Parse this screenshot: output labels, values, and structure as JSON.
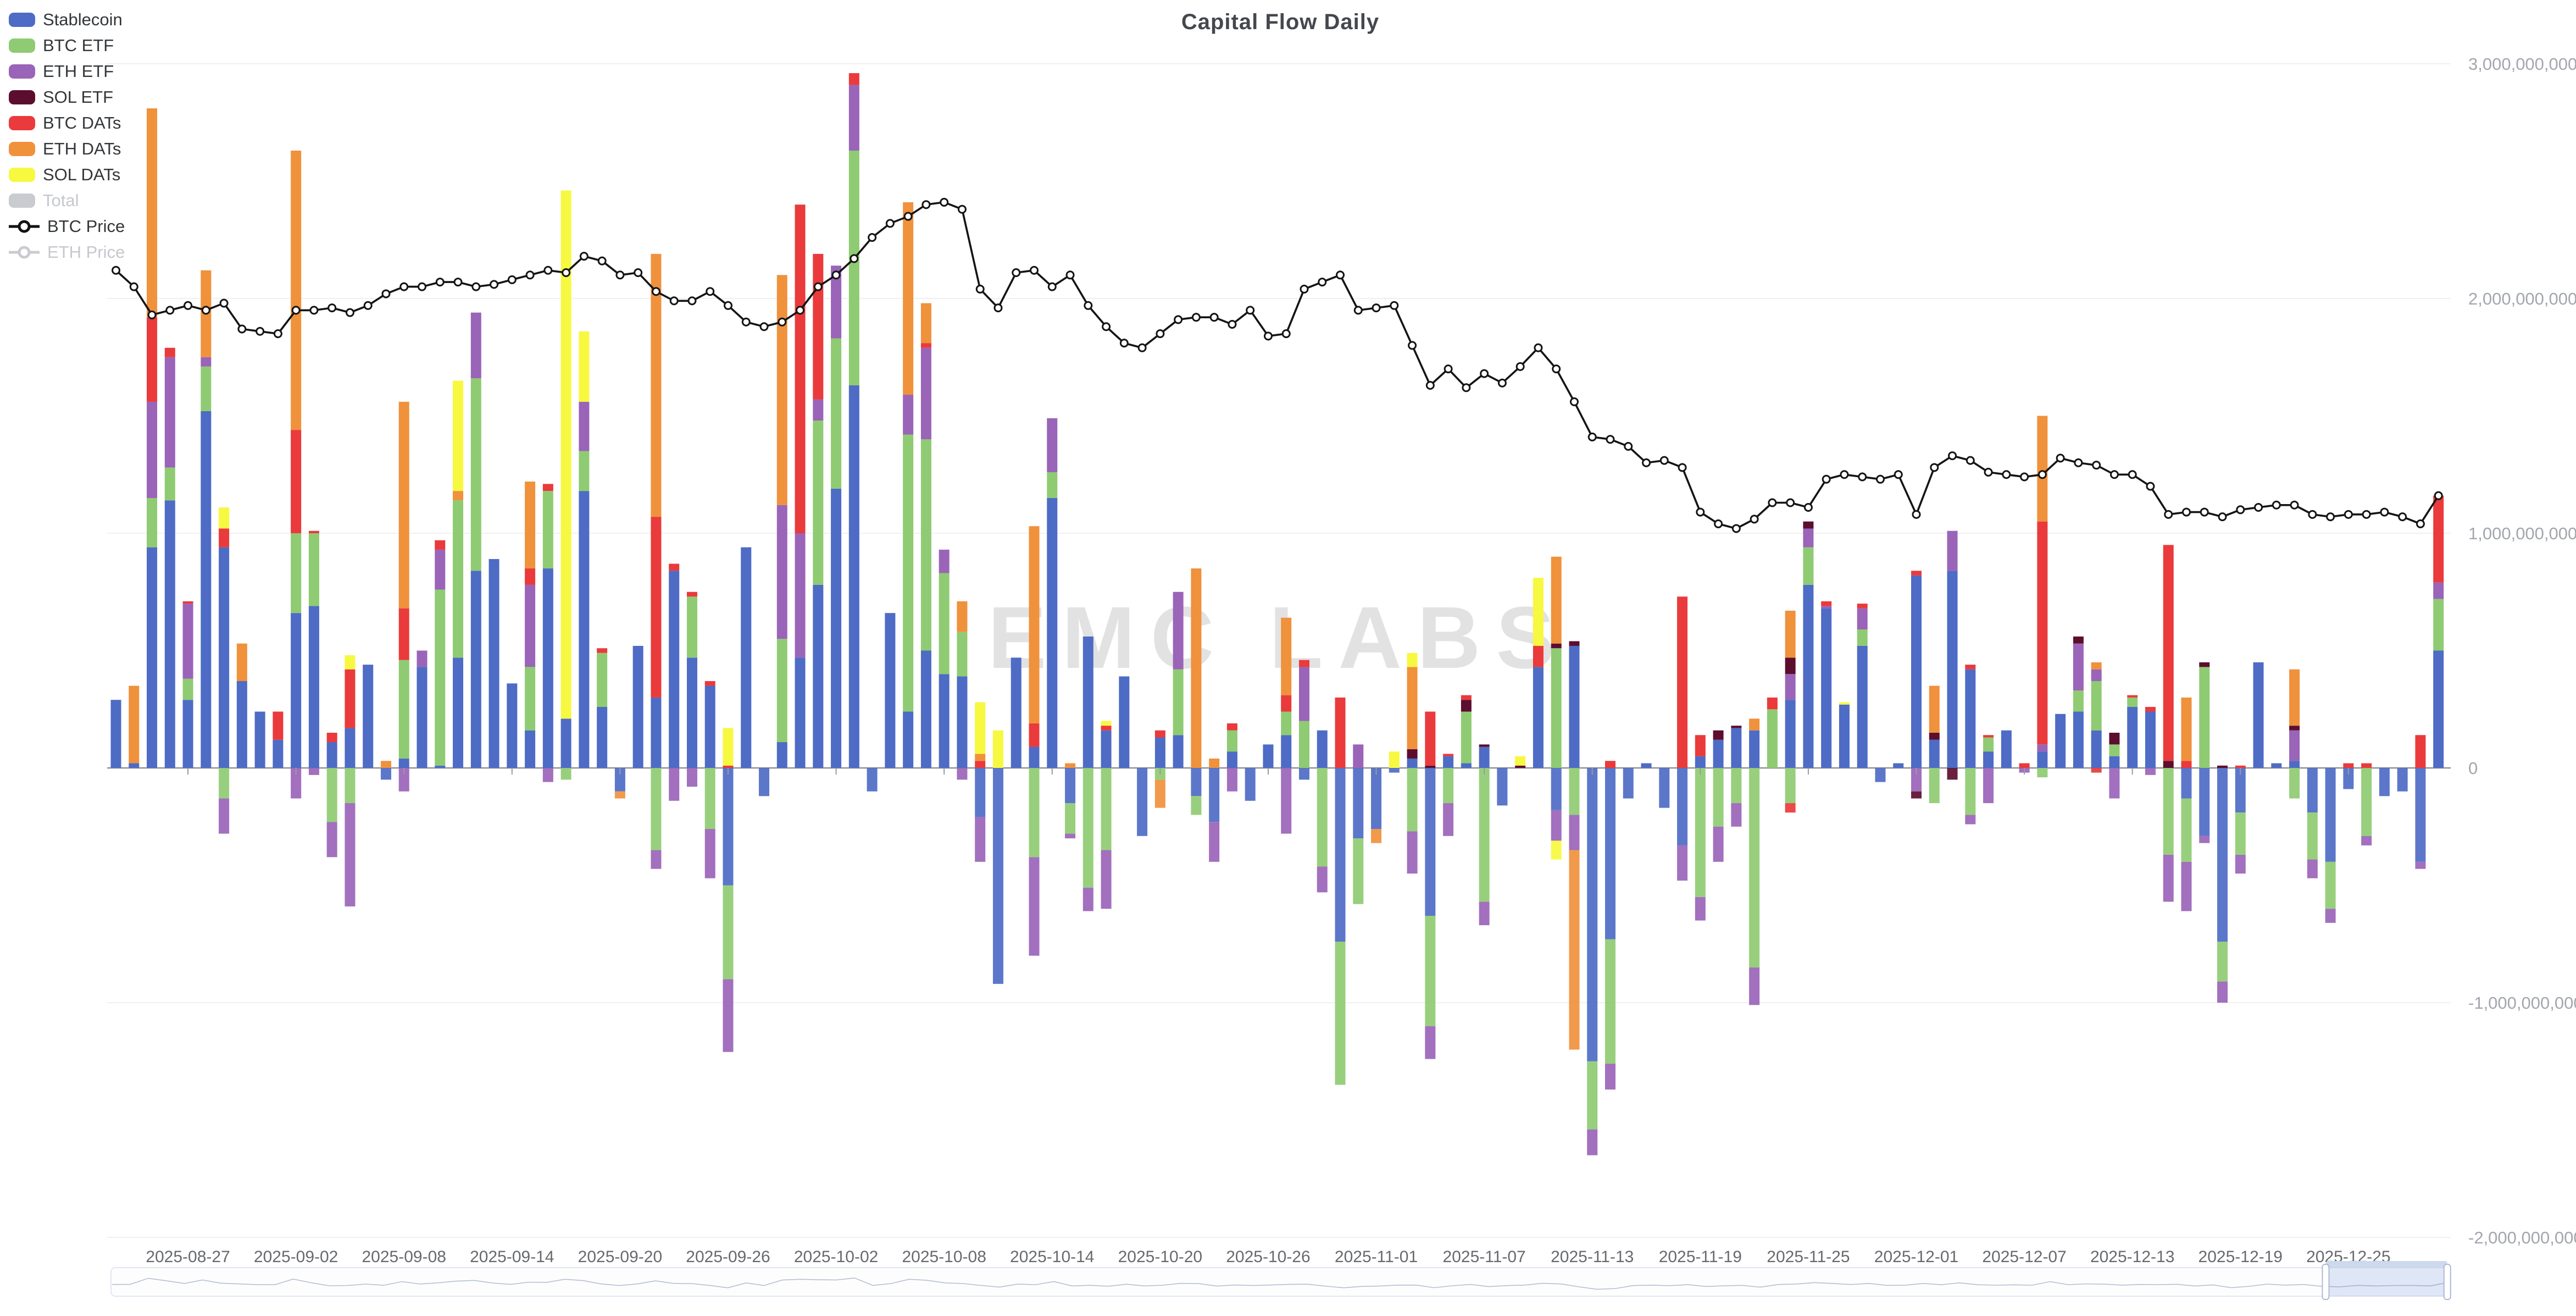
{
  "title": "Capital Flow Daily",
  "watermark": "EMC LABS",
  "legend": {
    "items": [
      {
        "label": "Stablecoin",
        "type": "bar",
        "color": "#4e6bc5",
        "enabled": true
      },
      {
        "label": "BTC ETF",
        "type": "bar",
        "color": "#8fcb72",
        "enabled": true
      },
      {
        "label": "ETH ETF",
        "type": "bar",
        "color": "#9a64b8",
        "enabled": true
      },
      {
        "label": "SOL ETF",
        "type": "bar",
        "color": "#5c0e2f",
        "enabled": true
      },
      {
        "label": "BTC DATs",
        "type": "bar",
        "color": "#ea3a3b",
        "enabled": true
      },
      {
        "label": "ETH DATs",
        "type": "bar",
        "color": "#f0913c",
        "enabled": true
      },
      {
        "label": "SOL DATs",
        "type": "bar",
        "color": "#f7f840",
        "enabled": true
      },
      {
        "label": "Total",
        "type": "bar",
        "color": "#c8c8c8",
        "enabled": false
      },
      {
        "label": "BTC Price",
        "type": "line",
        "color": "#111111",
        "enabled": true
      },
      {
        "label": "ETH Price",
        "type": "line",
        "color": "#c8c8c8",
        "enabled": false
      }
    ]
  },
  "y_axis": {
    "position": "right",
    "tick_labels": [
      "3,000,000,000",
      "2,000,000,000",
      "1,000,000,000",
      "0",
      "-1,000,000,000",
      "-2,000,000,000"
    ],
    "tick_values_millions": [
      3000,
      2000,
      1000,
      0,
      -1000,
      -2000
    ],
    "grid": true
  },
  "x_axis": {
    "tick_labels": [
      "2025-08-27",
      "2025-09-02",
      "2025-09-08",
      "2025-09-14",
      "2025-09-20",
      "2025-09-26",
      "2025-10-02",
      "2025-10-08",
      "2025-10-14",
      "2025-10-20",
      "2025-10-26",
      "2025-11-01",
      "2025-11-07",
      "2025-11-13",
      "2025-11-19",
      "2025-11-25",
      "2025-12-01",
      "2025-12-07",
      "2025-12-13",
      "2025-12-19",
      "2025-12-25"
    ],
    "tick_day_indices": [
      4,
      10,
      16,
      22,
      28,
      34,
      40,
      46,
      52,
      58,
      64,
      70,
      76,
      82,
      88,
      94,
      100,
      106,
      112,
      118,
      124
    ]
  },
  "data_zoom": {
    "selection_start_pct": 94.7,
    "selection_end_pct": 99.9
  },
  "chart_data": {
    "type": "bar",
    "subtype": "stacked bars with overlaid line",
    "unit": "USD millions (values approximate, read from gridlines)",
    "ylim_millions": [
      -2000,
      3000
    ],
    "legend_position": "top-left vertical",
    "series_order": [
      "stablecoin",
      "btc_etf",
      "eth_etf",
      "sol_etf",
      "btc_dats",
      "eth_dats",
      "sol_dats"
    ],
    "series_colors": {
      "stablecoin": "#4e6bc5",
      "btc_etf": "#8fcb72",
      "eth_etf": "#9a64b8",
      "sol_etf": "#5c0e2f",
      "btc_dats": "#ea3a3b",
      "eth_dats": "#f0913c",
      "sol_dats": "#f7f840",
      "btc_price": "#111111"
    },
    "days": [
      {
        "date": "2025-08-23",
        "s": 290,
        "p": 2120
      },
      {
        "date": "2025-08-24",
        "s": 20,
        "ed": 330,
        "p": 2050
      },
      {
        "date": "2025-08-25",
        "s": 940,
        "be": 210,
        "ee": 410,
        "bd": 360,
        "ed": 890,
        "p": 1930
      },
      {
        "date": "2025-08-26",
        "s": 1140,
        "be": 140,
        "ee": 470,
        "bd": 40,
        "p": 1950
      },
      {
        "date": "2025-08-27",
        "s": 290,
        "be": 90,
        "ee": 320,
        "bd": 10,
        "p": 1970
      },
      {
        "date": "2025-08-28",
        "s": 1520,
        "be": 190,
        "ee": 40,
        "ed": 370,
        "p": 1950
      },
      {
        "date": "2025-08-29",
        "s": 940,
        "bd": 80,
        "sd": 90,
        "be": -130,
        "ee": -150,
        "p": 1980
      },
      {
        "date": "2025-08-30",
        "s": 370,
        "ed": 160,
        "p": 1870
      },
      {
        "date": "2025-08-31",
        "s": 240,
        "p": 1860
      },
      {
        "date": "2025-09-01",
        "s": 120,
        "bd": 120,
        "p": 1850
      },
      {
        "date": "2025-09-02",
        "s": 660,
        "be": 340,
        "bd": 440,
        "ed": 1190,
        "ee": -130,
        "p": 1950
      },
      {
        "date": "2025-09-03",
        "s": 690,
        "be": 310,
        "bd": 10,
        "ee": -30,
        "p": 1950
      },
      {
        "date": "2025-09-04",
        "s": 110,
        "bd": 40,
        "be": -230,
        "ee": -150,
        "p": 1960
      },
      {
        "date": "2025-09-05",
        "s": 170,
        "bd": 250,
        "sd": 60,
        "be": -150,
        "ee": -440,
        "p": 1940
      },
      {
        "date": "2025-09-06",
        "s": 440,
        "p": 1970
      },
      {
        "date": "2025-09-07",
        "s": -50,
        "ed": 30,
        "p": 2020
      },
      {
        "date": "2025-09-08",
        "s": 40,
        "be": 420,
        "bd": 220,
        "ed": 880,
        "ee": -100,
        "p": 2050
      },
      {
        "date": "2025-09-09",
        "s": 430,
        "ee": 70,
        "p": 2050
      },
      {
        "date": "2025-09-10",
        "s": 10,
        "be": 750,
        "ee": 170,
        "bd": 40,
        "p": 2070
      },
      {
        "date": "2025-09-11",
        "s": 470,
        "be": 670,
        "ed": 40,
        "sd": 470,
        "p": 2070
      },
      {
        "date": "2025-09-12",
        "s": 840,
        "be": 820,
        "ee": 280,
        "p": 2050
      },
      {
        "date": "2025-09-13",
        "s": 890,
        "p": 2060
      },
      {
        "date": "2025-09-14",
        "s": 360,
        "p": 2080
      },
      {
        "date": "2025-09-15",
        "s": 160,
        "be": 270,
        "ee": 350,
        "bd": 70,
        "ed": 370,
        "p": 2100
      },
      {
        "date": "2025-09-16",
        "s": 850,
        "be": 330,
        "bd": 30,
        "ee": -60,
        "p": 2120
      },
      {
        "date": "2025-09-17",
        "s": 210,
        "sd": 2250,
        "be": -50,
        "p": 2110
      },
      {
        "date": "2025-09-18",
        "s": 1180,
        "be": 170,
        "ee": 210,
        "sd": 300,
        "p": 2180
      },
      {
        "date": "2025-09-19",
        "s": 260,
        "be": 230,
        "bd": 20,
        "p": 2160
      },
      {
        "date": "2025-09-20",
        "s": -100,
        "ed": -30,
        "p": 2100
      },
      {
        "date": "2025-09-21",
        "s": 520,
        "p": 2110
      },
      {
        "date": "2025-09-22",
        "s": 300,
        "bd": 770,
        "ed": 1120,
        "be": -350,
        "ee": -80,
        "p": 2030
      },
      {
        "date": "2025-09-23",
        "s": 840,
        "bd": 30,
        "ee": -140,
        "p": 1990
      },
      {
        "date": "2025-09-24",
        "s": 470,
        "be": 260,
        "bd": 20,
        "ee": -80,
        "p": 1990
      },
      {
        "date": "2025-09-25",
        "s": 350,
        "bd": 20,
        "be": -260,
        "ee": -210,
        "p": 2030
      },
      {
        "date": "2025-09-26",
        "bd": 10,
        "sd": 160,
        "s": -500,
        "be": -400,
        "ee": -310,
        "p": 1970
      },
      {
        "date": "2025-09-27",
        "s": 940,
        "p": 1900
      },
      {
        "date": "2025-09-28",
        "s": -120,
        "p": 1880
      },
      {
        "date": "2025-09-29",
        "s": 110,
        "be": 440,
        "ee": 570,
        "ed": 980,
        "p": 1900
      },
      {
        "date": "2025-09-30",
        "s": 470,
        "ee": 530,
        "bd": 1400,
        "p": 1950
      },
      {
        "date": "2025-10-01",
        "s": 780,
        "be": 700,
        "ee": 90,
        "bd": 620,
        "p": 2050
      },
      {
        "date": "2025-10-02",
        "s": 1190,
        "be": 640,
        "ee": 310,
        "p": 2100
      },
      {
        "date": "2025-10-03",
        "s": 1630,
        "be": 1000,
        "ee": 280,
        "bd": 50,
        "p": 2170
      },
      {
        "date": "2025-10-04",
        "s": -100,
        "p": 2260
      },
      {
        "date": "2025-10-05",
        "s": 660,
        "p": 2320
      },
      {
        "date": "2025-10-06",
        "s": 240,
        "be": 1180,
        "ee": 170,
        "ed": 820,
        "p": 2350
      },
      {
        "date": "2025-10-07",
        "s": 500,
        "be": 900,
        "ee": 390,
        "bd": 20,
        "ed": 170,
        "p": 2400
      },
      {
        "date": "2025-10-08",
        "s": 400,
        "be": 430,
        "ee": 100,
        "p": 2410
      },
      {
        "date": "2025-10-09",
        "s": 390,
        "be": 190,
        "ed": 130,
        "ee": -50,
        "p": 2380
      },
      {
        "date": "2025-10-10",
        "bd": 30,
        "ed": 30,
        "sd": 220,
        "s": -210,
        "ee": -190,
        "p": 2040
      },
      {
        "date": "2025-10-11",
        "sd": 160,
        "s": -920,
        "p": 1960
      },
      {
        "date": "2025-10-12",
        "s": 470,
        "p": 2110
      },
      {
        "date": "2025-10-13",
        "s": 90,
        "bd": 100,
        "ed": 840,
        "be": -380,
        "ee": -420,
        "p": 2120
      },
      {
        "date": "2025-10-14",
        "s": 1150,
        "be": 110,
        "ee": 230,
        "p": 2050
      },
      {
        "date": "2025-10-15",
        "ed": 20,
        "s": -150,
        "be": -130,
        "ee": -20,
        "p": 2100
      },
      {
        "date": "2025-10-16",
        "s": 560,
        "be": -510,
        "ee": -100,
        "p": 1970
      },
      {
        "date": "2025-10-17",
        "s": 160,
        "bd": 20,
        "sd": 20,
        "be": -350,
        "ee": -250,
        "p": 1880
      },
      {
        "date": "2025-10-18",
        "s": 390,
        "p": 1810
      },
      {
        "date": "2025-10-19",
        "s": -290,
        "p": 1790
      },
      {
        "date": "2025-10-20",
        "s": 130,
        "bd": 30,
        "be": -50,
        "ed": -120,
        "p": 1850
      },
      {
        "date": "2025-10-21",
        "s": 140,
        "be": 280,
        "ee": 330,
        "p": 1910
      },
      {
        "date": "2025-10-22",
        "ed": 850,
        "s": -120,
        "be": -80,
        "p": 1920
      },
      {
        "date": "2025-10-23",
        "ed": 40,
        "s": -230,
        "ee": -170,
        "p": 1920
      },
      {
        "date": "2025-10-24",
        "s": 70,
        "be": 90,
        "bd": 30,
        "ee": -100,
        "p": 1890
      },
      {
        "date": "2025-10-25",
        "s": -140,
        "p": 1950
      },
      {
        "date": "2025-10-26",
        "s": 100,
        "p": 1840
      },
      {
        "date": "2025-10-27",
        "s": 140,
        "be": 100,
        "bd": 70,
        "ed": 330,
        "ee": -280,
        "p": 1850
      },
      {
        "date": "2025-10-28",
        "be": 200,
        "ee": 230,
        "bd": 30,
        "s": -50,
        "p": 2040
      },
      {
        "date": "2025-10-29",
        "s": 160,
        "be": -420,
        "ee": -110,
        "p": 2070
      },
      {
        "date": "2025-10-30",
        "bd": 300,
        "s": -740,
        "be": -610,
        "p": 2100
      },
      {
        "date": "2025-10-31",
        "ee": 100,
        "s": -300,
        "be": -280,
        "p": 1950
      },
      {
        "date": "2025-11-01",
        "s": -260,
        "ed": -60,
        "p": 1960
      },
      {
        "date": "2025-11-02",
        "sd": 70,
        "s": -20,
        "p": 1970
      },
      {
        "date": "2025-11-03",
        "s": 40,
        "se": 40,
        "ed": 350,
        "sd": 60,
        "be": -270,
        "ee": -180,
        "p": 1800
      },
      {
        "date": "2025-11-04",
        "se": 10,
        "bd": 230,
        "s": -630,
        "be": -470,
        "ee": -140,
        "p": 1630
      },
      {
        "date": "2025-11-05",
        "s": 50,
        "bd": 10,
        "be": -150,
        "ee": -140,
        "p": 1700
      },
      {
        "date": "2025-11-06",
        "s": 20,
        "be": 220,
        "se": 50,
        "bd": 20,
        "p": 1620
      },
      {
        "date": "2025-11-07",
        "s": 90,
        "se": 10,
        "be": -570,
        "ee": -100,
        "p": 1680
      },
      {
        "date": "2025-11-08",
        "s": -160,
        "p": 1640
      },
      {
        "date": "2025-11-09",
        "se": 10,
        "sd": 40,
        "p": 1710
      },
      {
        "date": "2025-11-10",
        "s": 430,
        "bd": 90,
        "sd": 290,
        "p": 1790
      },
      {
        "date": "2025-11-11",
        "be": 510,
        "se": 20,
        "ed": 370,
        "s": -180,
        "ee": -130,
        "sd": -80,
        "p": 1700
      },
      {
        "date": "2025-11-12",
        "s": 520,
        "se": 20,
        "be": -200,
        "ee": -150,
        "ed": -850,
        "p": 1560
      },
      {
        "date": "2025-11-13",
        "s": -1250,
        "be": -290,
        "ee": -110,
        "p": 1410
      },
      {
        "date": "2025-11-14",
        "bd": 30,
        "s": -730,
        "be": -530,
        "ee": -110,
        "p": 1400
      },
      {
        "date": "2025-11-15",
        "s": -130,
        "p": 1370
      },
      {
        "date": "2025-11-16",
        "s": 20,
        "p": 1300
      },
      {
        "date": "2025-11-17",
        "s": -170,
        "p": 1310
      },
      {
        "date": "2025-11-18",
        "bd": 730,
        "s": -330,
        "ee": -150,
        "p": 1280
      },
      {
        "date": "2025-11-19",
        "s": 50,
        "bd": 90,
        "be": -550,
        "ee": -100,
        "p": 1090
      },
      {
        "date": "2025-11-20",
        "s": 120,
        "se": 40,
        "be": -250,
        "ee": -150,
        "p": 1040
      },
      {
        "date": "2025-11-21",
        "s": 170,
        "se": 10,
        "be": -150,
        "ee": -100,
        "p": 1020
      },
      {
        "date": "2025-11-22",
        "s": 160,
        "ed": 50,
        "be": -850,
        "ee": -160,
        "p": 1060
      },
      {
        "date": "2025-11-23",
        "be": 250,
        "bd": 50,
        "p": 1130
      },
      {
        "date": "2025-11-24",
        "s": 290,
        "ee": 110,
        "se": 70,
        "ed": 200,
        "be": -150,
        "bd": -40,
        "p": 1130
      },
      {
        "date": "2025-11-25",
        "s": 780,
        "be": 160,
        "ee": 80,
        "se": 30,
        "p": 1110
      },
      {
        "date": "2025-11-26",
        "s": 680,
        "ee": 10,
        "bd": 20,
        "p": 1230
      },
      {
        "date": "2025-11-27",
        "s": 270,
        "sd": 10,
        "p": 1250
      },
      {
        "date": "2025-11-28",
        "s": 520,
        "be": 70,
        "ee": 90,
        "bd": 20,
        "p": 1240
      },
      {
        "date": "2025-11-29",
        "s": -60,
        "p": 1230
      },
      {
        "date": "2025-11-30",
        "s": 20,
        "p": 1250
      },
      {
        "date": "2025-12-01",
        "s": 820,
        "bd": 20,
        "ee": -100,
        "se": -30,
        "p": 1080
      },
      {
        "date": "2025-12-02",
        "s": 120,
        "se": 30,
        "ed": 200,
        "be": -150,
        "p": 1280
      },
      {
        "date": "2025-12-03",
        "s": 840,
        "ee": 170,
        "se": -50,
        "p": 1330
      },
      {
        "date": "2025-12-04",
        "s": 420,
        "bd": 20,
        "be": -200,
        "ee": -40,
        "p": 1310
      },
      {
        "date": "2025-12-05",
        "s": 70,
        "be": 60,
        "bd": 10,
        "ee": -150,
        "p": 1260
      },
      {
        "date": "2025-12-06",
        "s": 160,
        "p": 1250
      },
      {
        "date": "2025-12-07",
        "bd": 20,
        "ee": -20,
        "p": 1240
      },
      {
        "date": "2025-12-08",
        "s": 70,
        "ee": 30,
        "bd": 950,
        "ed": 450,
        "be": -40,
        "p": 1250
      },
      {
        "date": "2025-12-09",
        "s": 230,
        "p": 1320
      },
      {
        "date": "2025-12-10",
        "s": 240,
        "be": 90,
        "ee": 200,
        "se": 30,
        "p": 1300
      },
      {
        "date": "2025-12-11",
        "s": 160,
        "be": 210,
        "ee": 50,
        "ed": 30,
        "bd": -20,
        "p": 1290
      },
      {
        "date": "2025-12-12",
        "s": 50,
        "be": 50,
        "se": 50,
        "ee": -130,
        "p": 1250
      },
      {
        "date": "2025-12-13",
        "s": 260,
        "be": 40,
        "bd": 10,
        "p": 1250
      },
      {
        "date": "2025-12-14",
        "s": 240,
        "bd": 20,
        "ee": -30,
        "p": 1200
      },
      {
        "date": "2025-12-15",
        "se": 30,
        "bd": 920,
        "be": -370,
        "ee": -200,
        "p": 1080
      },
      {
        "date": "2025-12-16",
        "bd": 30,
        "ed": 270,
        "s": -130,
        "be": -270,
        "ee": -210,
        "p": 1090
      },
      {
        "date": "2025-12-17",
        "be": 430,
        "se": 20,
        "s": -290,
        "ee": -30,
        "p": 1090
      },
      {
        "date": "2025-12-18",
        "se": 10,
        "s": -740,
        "be": -170,
        "ee": -90,
        "p": 1070
      },
      {
        "date": "2025-12-19",
        "bd": 10,
        "s": -190,
        "be": -180,
        "ee": -80,
        "p": 1100
      },
      {
        "date": "2025-12-20",
        "s": 450,
        "p": 1110
      },
      {
        "date": "2025-12-21",
        "s": 20,
        "p": 1120
      },
      {
        "date": "2025-12-22",
        "s": 30,
        "ee": 130,
        "se": 20,
        "ed": 240,
        "be": -130,
        "p": 1120
      },
      {
        "date": "2025-12-23",
        "s": -190,
        "be": -200,
        "ee": -80,
        "p": 1080
      },
      {
        "date": "2025-12-24",
        "s": -400,
        "be": -200,
        "ee": -60,
        "p": 1070
      },
      {
        "date": "2025-12-25",
        "bd": 20,
        "s": -90,
        "p": 1080
      },
      {
        "date": "2025-12-26",
        "bd": 20,
        "be": -290,
        "ee": -40,
        "p": 1080
      },
      {
        "date": "2025-12-27",
        "s": -120,
        "p": 1090
      },
      {
        "date": "2025-12-28",
        "s": -100,
        "p": 1070
      },
      {
        "date": "2025-12-29",
        "bd": 140,
        "s": -400,
        "ee": -30,
        "p": 1040
      },
      {
        "date": "2025-12-30",
        "s": 500,
        "be": 220,
        "ee": 70,
        "bd": 370,
        "p": 1160
      }
    ]
  }
}
